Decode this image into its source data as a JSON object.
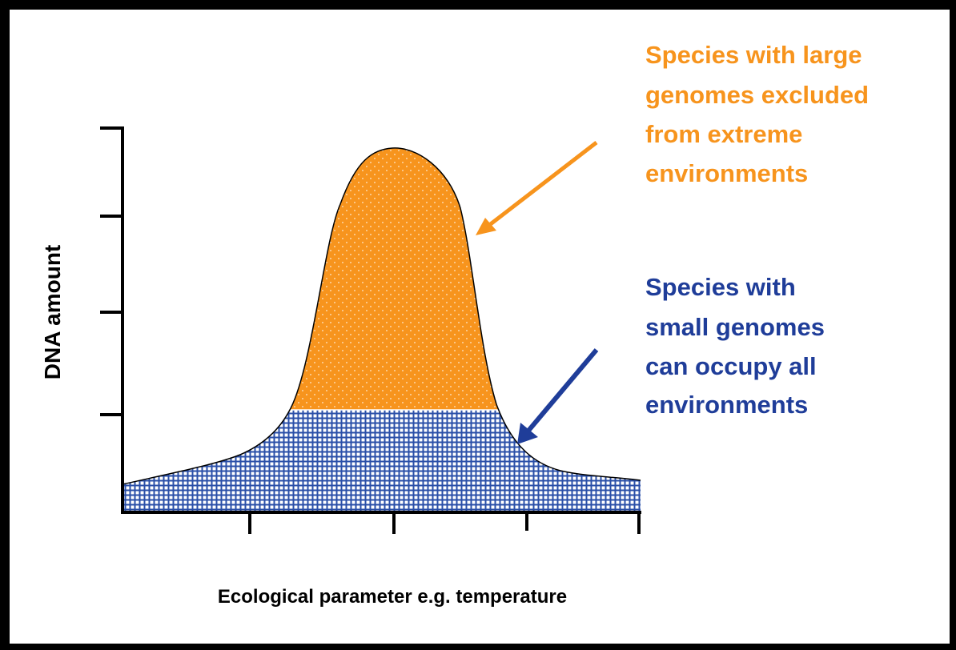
{
  "axes": {
    "y_label": "DNA amount",
    "x_label": "Ecological parameter e.g. temperature"
  },
  "annotations": {
    "large_genomes": {
      "lines": [
        "Species with large",
        "genomes excluded",
        "from extreme",
        "environments"
      ]
    },
    "small_genomes": {
      "lines": [
        "Species with",
        "small genomes",
        "can occupy all",
        "environments"
      ]
    }
  }
}
